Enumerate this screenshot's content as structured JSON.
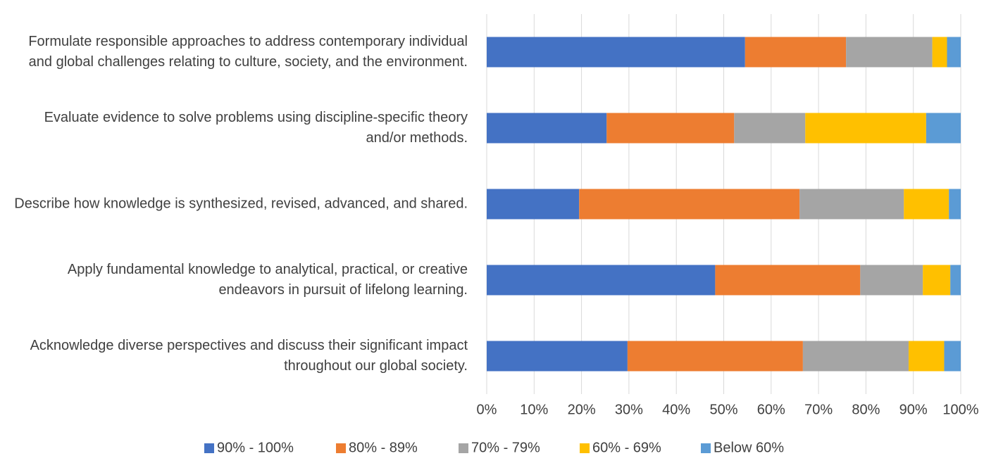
{
  "chart_data": {
    "type": "stacked_bar_horizontal",
    "categories": [
      "Formulate responsible approaches to address contemporary individual and global challenges relating to culture, society, and the environment.",
      "Evaluate evidence to solve problems using discipline-specific theory and/or methods.",
      "Describe how knowledge is synthesized, revised, advanced, and shared.",
      "Apply fundamental knowledge to analytical, practical, or creative endeavors in pursuit of lifelong learning.",
      "Acknowledge diverse perspectives and discuss their significant impact throughout our global society."
    ],
    "series": [
      {
        "name": "90% - 100%",
        "color": "#4472c4",
        "values": [
          54.5,
          25.3,
          19.5,
          48.2,
          29.7
        ]
      },
      {
        "name": "80% - 89%",
        "color": "#ed7d31",
        "values": [
          21.3,
          26.9,
          46.5,
          30.6,
          37.0
        ]
      },
      {
        "name": "70% - 79%",
        "color": "#a5a5a5",
        "values": [
          18.2,
          15.0,
          22.0,
          13.2,
          22.3
        ]
      },
      {
        "name": "60% - 69%",
        "color": "#ffc000",
        "values": [
          3.1,
          25.5,
          9.5,
          5.8,
          7.5
        ]
      },
      {
        "name": "Below 60%",
        "color": "#5b9bd5",
        "values": [
          2.9,
          7.3,
          2.5,
          2.2,
          3.5
        ]
      }
    ],
    "xlim": [
      0,
      100
    ],
    "xticks": [
      {
        "value": 0,
        "label": "0%"
      },
      {
        "value": 10,
        "label": "10%"
      },
      {
        "value": 20,
        "label": "20%"
      },
      {
        "value": 30,
        "label": "30%"
      },
      {
        "value": 40,
        "label": "40%"
      },
      {
        "value": 50,
        "label": "50%"
      },
      {
        "value": 60,
        "label": "60%"
      },
      {
        "value": 70,
        "label": "70%"
      },
      {
        "value": 80,
        "label": "80%"
      },
      {
        "value": 90,
        "label": "90%"
      },
      {
        "value": 100,
        "label": "100%"
      }
    ],
    "grid": true,
    "legend": "bottom"
  }
}
